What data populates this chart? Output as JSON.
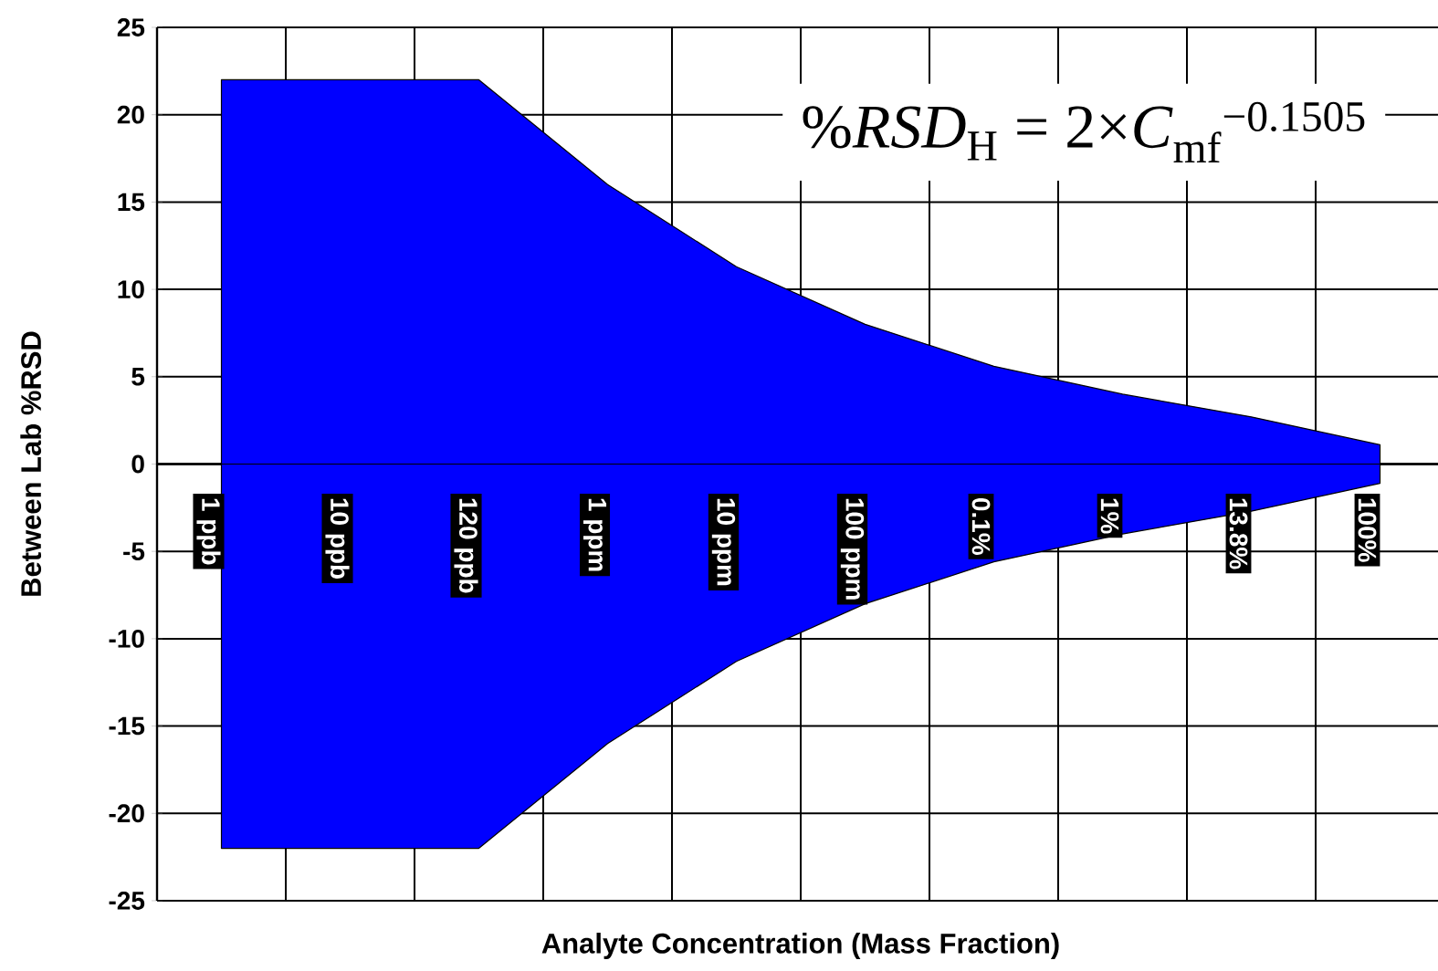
{
  "chart_data": {
    "type": "area",
    "xlabel": "Analyte Concentration (Mass Fraction)",
    "ylabel": "Between Lab %RSD",
    "categories": [
      "1 ppb",
      "10 ppb",
      "120 ppb",
      "1 ppm",
      "10 ppm",
      "100 ppm",
      "0.1%",
      "1%",
      "13.8%",
      "100%"
    ],
    "series": [
      {
        "color": "#0000ff",
        "values": [
          22,
          22,
          22,
          16,
          11.3,
          8,
          5.6,
          4,
          2.7,
          1.1
        ]
      },
      {
        "color": "#0000ff",
        "values": [
          -22,
          -22,
          -22,
          -16,
          -11.3,
          -8,
          -5.6,
          -4,
          -2.7,
          -1.1
        ]
      }
    ],
    "ylim": [
      -25,
      25
    ],
    "yticks": [
      -25,
      -20,
      -15,
      -10,
      -5,
      0,
      5,
      10,
      15,
      20,
      25
    ],
    "grid": true,
    "annotations": [
      "%*RSD*$_{H}$ = 2×*C*$_{mf}$$^{−0.1505}$"
    ]
  }
}
